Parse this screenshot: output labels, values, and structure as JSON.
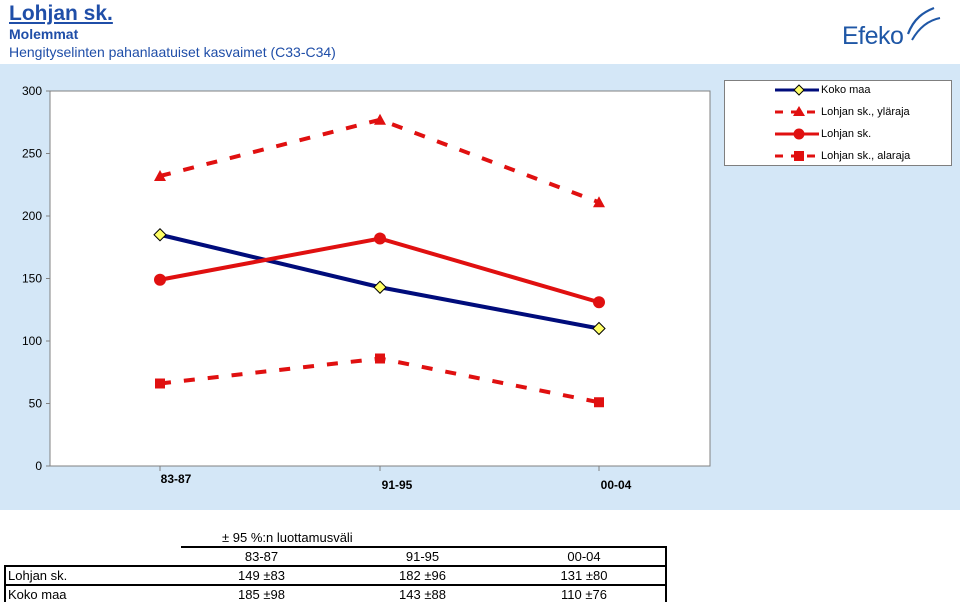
{
  "header": {
    "title": "Lohjan sk.",
    "subtitle": "Molemmat",
    "description": "Hengityselinten pahanlaatuiset kasvaimet (C33-C34)"
  },
  "logo": {
    "text": "Efeko"
  },
  "colors": {
    "panel": "#d4e7f7",
    "navy": "#000c7b",
    "red": "#e01010",
    "yellow": "#ffff66"
  },
  "chart_data": {
    "type": "line",
    "categories": [
      "83-87",
      "91-95",
      "00-04"
    ],
    "ylim": [
      0,
      300
    ],
    "yticks": [
      "0",
      "50",
      "100",
      "150",
      "200",
      "250",
      "300"
    ],
    "grid": false,
    "legend_position": "top-right",
    "series": [
      {
        "name": "Koko maa",
        "values": [
          185,
          143,
          110
        ],
        "color": "#000c7b",
        "style": "solid",
        "marker": "diamond"
      },
      {
        "name": "Lohjan sk., yläraja",
        "values": [
          232,
          277,
          211
        ],
        "color": "#e01010",
        "style": "dashed",
        "marker": "triangle"
      },
      {
        "name": "Lohjan sk.",
        "values": [
          149,
          182,
          131
        ],
        "color": "#e01010",
        "style": "solid",
        "marker": "circle"
      },
      {
        "name": "Lohjan sk., alaraja",
        "values": [
          66,
          86,
          51
        ],
        "color": "#e01010",
        "style": "dashed",
        "marker": "square"
      }
    ]
  },
  "ci_table": {
    "caption": "± 95 %:n luottamusväli",
    "columns": [
      "83-87",
      "91-95",
      "00-04"
    ],
    "rows": [
      {
        "label": "Lohjan sk.",
        "values": [
          "149 ±83",
          "182 ±96",
          "131 ±80"
        ]
      },
      {
        "label": "Koko maa",
        "values": [
          "185 ±98",
          "143 ±88",
          "110 ±76"
        ]
      }
    ]
  }
}
